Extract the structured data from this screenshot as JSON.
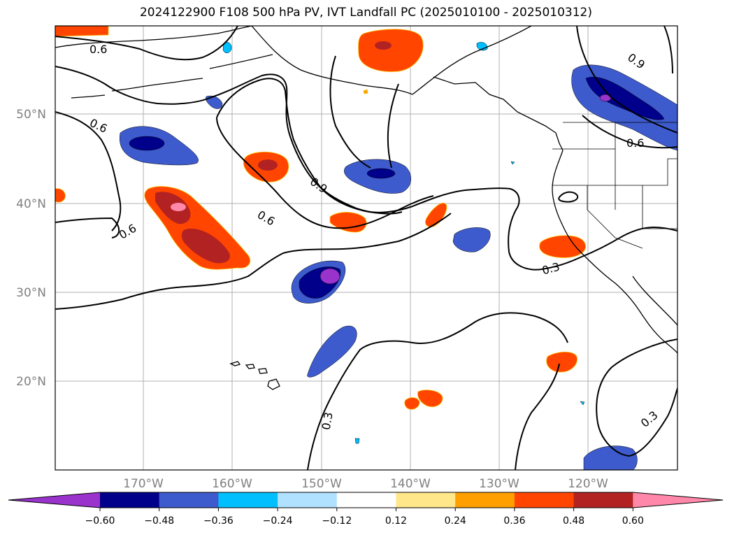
{
  "title": "2024122900 F108 500 hPa PV, IVT Landfall PC (2025010100 - 2025010312)",
  "map": {
    "lat_labels": [
      "50°N",
      "40°N",
      "30°N",
      "20°N"
    ],
    "lon_labels": [
      "170°W",
      "160°W",
      "150°W",
      "140°W",
      "130°W",
      "120°W"
    ],
    "contour_labels": [
      "0.6",
      "0.6",
      "0.6",
      "0.6",
      "0.9",
      "0.9",
      "0.6",
      "0.3",
      "0.3",
      "0.3"
    ]
  },
  "colorbar": {
    "tick_labels": [
      "−0.60",
      "−0.48",
      "−0.36",
      "−0.24",
      "−0.12",
      "0.12",
      "0.24",
      "0.36",
      "0.48",
      "0.60"
    ],
    "colors": [
      "#9933cc",
      "#00008b",
      "#3d5bcc",
      "#00bfff",
      "#b0e2ff",
      "#ffffff",
      "#ffe78a",
      "#ff9f00",
      "#ff4500",
      "#b22222",
      "#ff88aa"
    ]
  }
}
